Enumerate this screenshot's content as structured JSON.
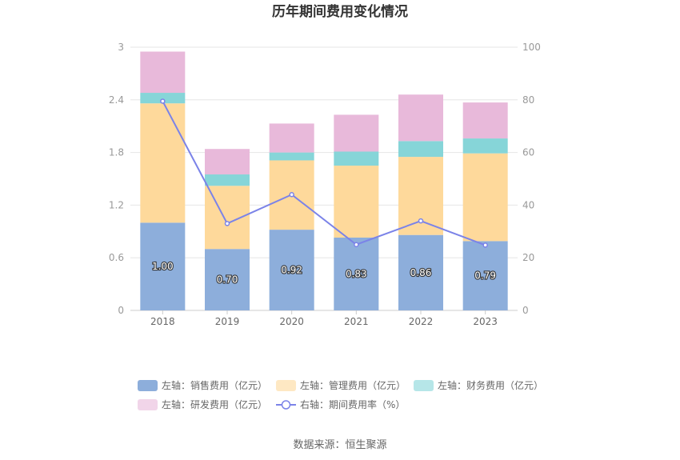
{
  "chart_data": {
    "type": "bar",
    "stacked": true,
    "title": "历年期间费用变化情况",
    "categories": [
      "2018",
      "2019",
      "2020",
      "2021",
      "2022",
      "2023"
    ],
    "left_axis": {
      "min": 0,
      "max": 3,
      "ticks": [
        "0",
        "0.6",
        "1.2",
        "1.8",
        "2.4",
        "3"
      ]
    },
    "right_axis": {
      "min": 0,
      "max": 100,
      "ticks": [
        "0",
        "20",
        "40",
        "60",
        "80",
        "100"
      ]
    },
    "series": [
      {
        "name": "左轴：销售费用（亿元）",
        "axis": "left",
        "color": "#8daedb",
        "values": [
          1.0,
          0.7,
          0.92,
          0.83,
          0.86,
          0.79
        ],
        "labels": [
          "1.00",
          "0.70",
          "0.92",
          "0.83",
          "0.86",
          "0.79"
        ]
      },
      {
        "name": "左轴：管理费用（亿元）",
        "axis": "left",
        "color": "#fed99b",
        "values": [
          1.36,
          0.72,
          0.79,
          0.82,
          0.89,
          1.0
        ]
      },
      {
        "name": "左轴：财务费用（亿元）",
        "axis": "left",
        "color": "#86d5d8",
        "values": [
          0.12,
          0.13,
          0.09,
          0.16,
          0.18,
          0.17
        ]
      },
      {
        "name": "左轴：研发费用（亿元）",
        "axis": "left",
        "color": "#e8b9da",
        "values": [
          0.47,
          0.29,
          0.33,
          0.42,
          0.53,
          0.41
        ]
      },
      {
        "name": "右轴：期间费用率（%）",
        "axis": "right",
        "type": "line",
        "color": "#7b83e8",
        "values": [
          79.5,
          33.0,
          44.0,
          25.0,
          34.0,
          24.8
        ]
      }
    ],
    "legend_position": "bottom",
    "grid": true
  },
  "source": "数据来源：恒生聚源"
}
